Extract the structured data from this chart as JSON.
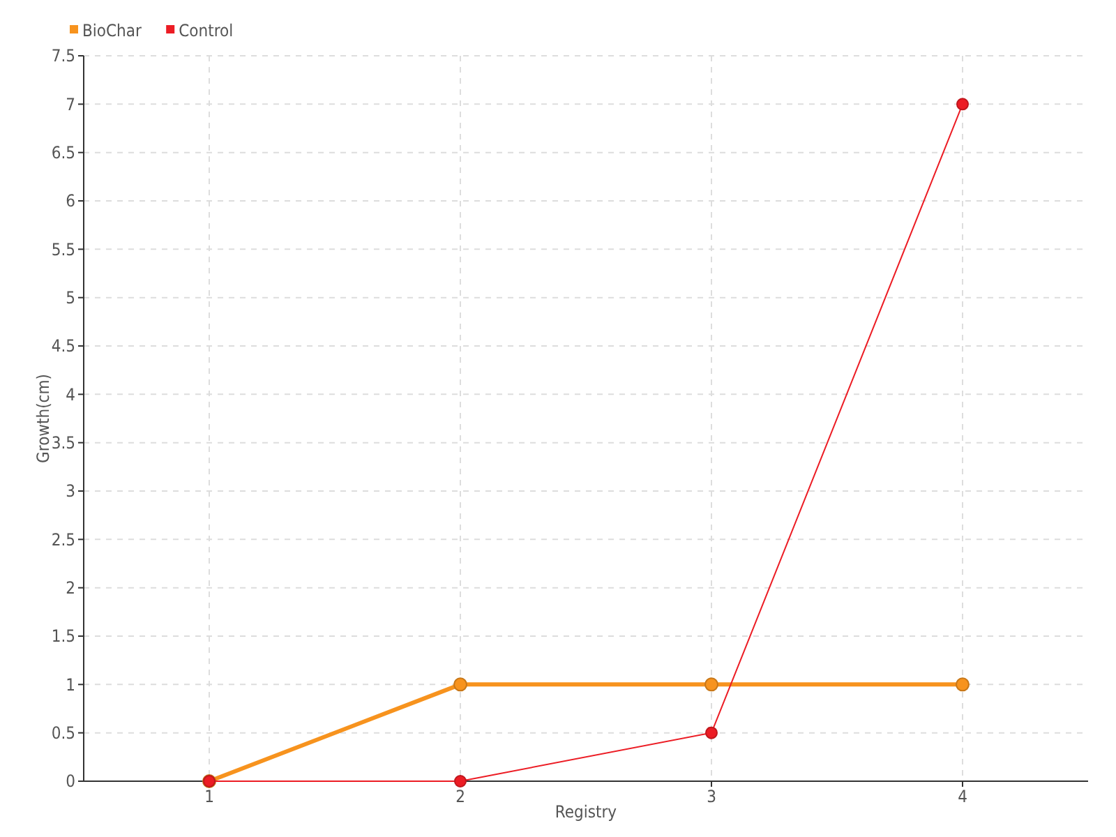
{
  "chart_data": {
    "type": "line",
    "xlabel": "Registry",
    "ylabel": "Growth(cm)",
    "x": [
      1,
      2,
      3,
      4
    ],
    "xlim": [
      0.5,
      4.5
    ],
    "xticks": [
      1,
      2,
      3,
      4
    ],
    "ylim": [
      0,
      7.5
    ],
    "yticks": [
      0,
      0.5,
      1,
      1.5,
      2,
      2.5,
      3,
      3.5,
      4,
      4.5,
      5,
      5.5,
      6,
      6.5,
      7,
      7.5
    ],
    "grid": true,
    "legend": "top left",
    "marker": "circle",
    "series": [
      {
        "name": "BioChar",
        "color": "#f7931e",
        "values": [
          0,
          1,
          1,
          1
        ]
      },
      {
        "name": "Control",
        "color": "#ec1c24",
        "values": [
          0,
          0,
          0.5,
          7
        ]
      }
    ]
  }
}
